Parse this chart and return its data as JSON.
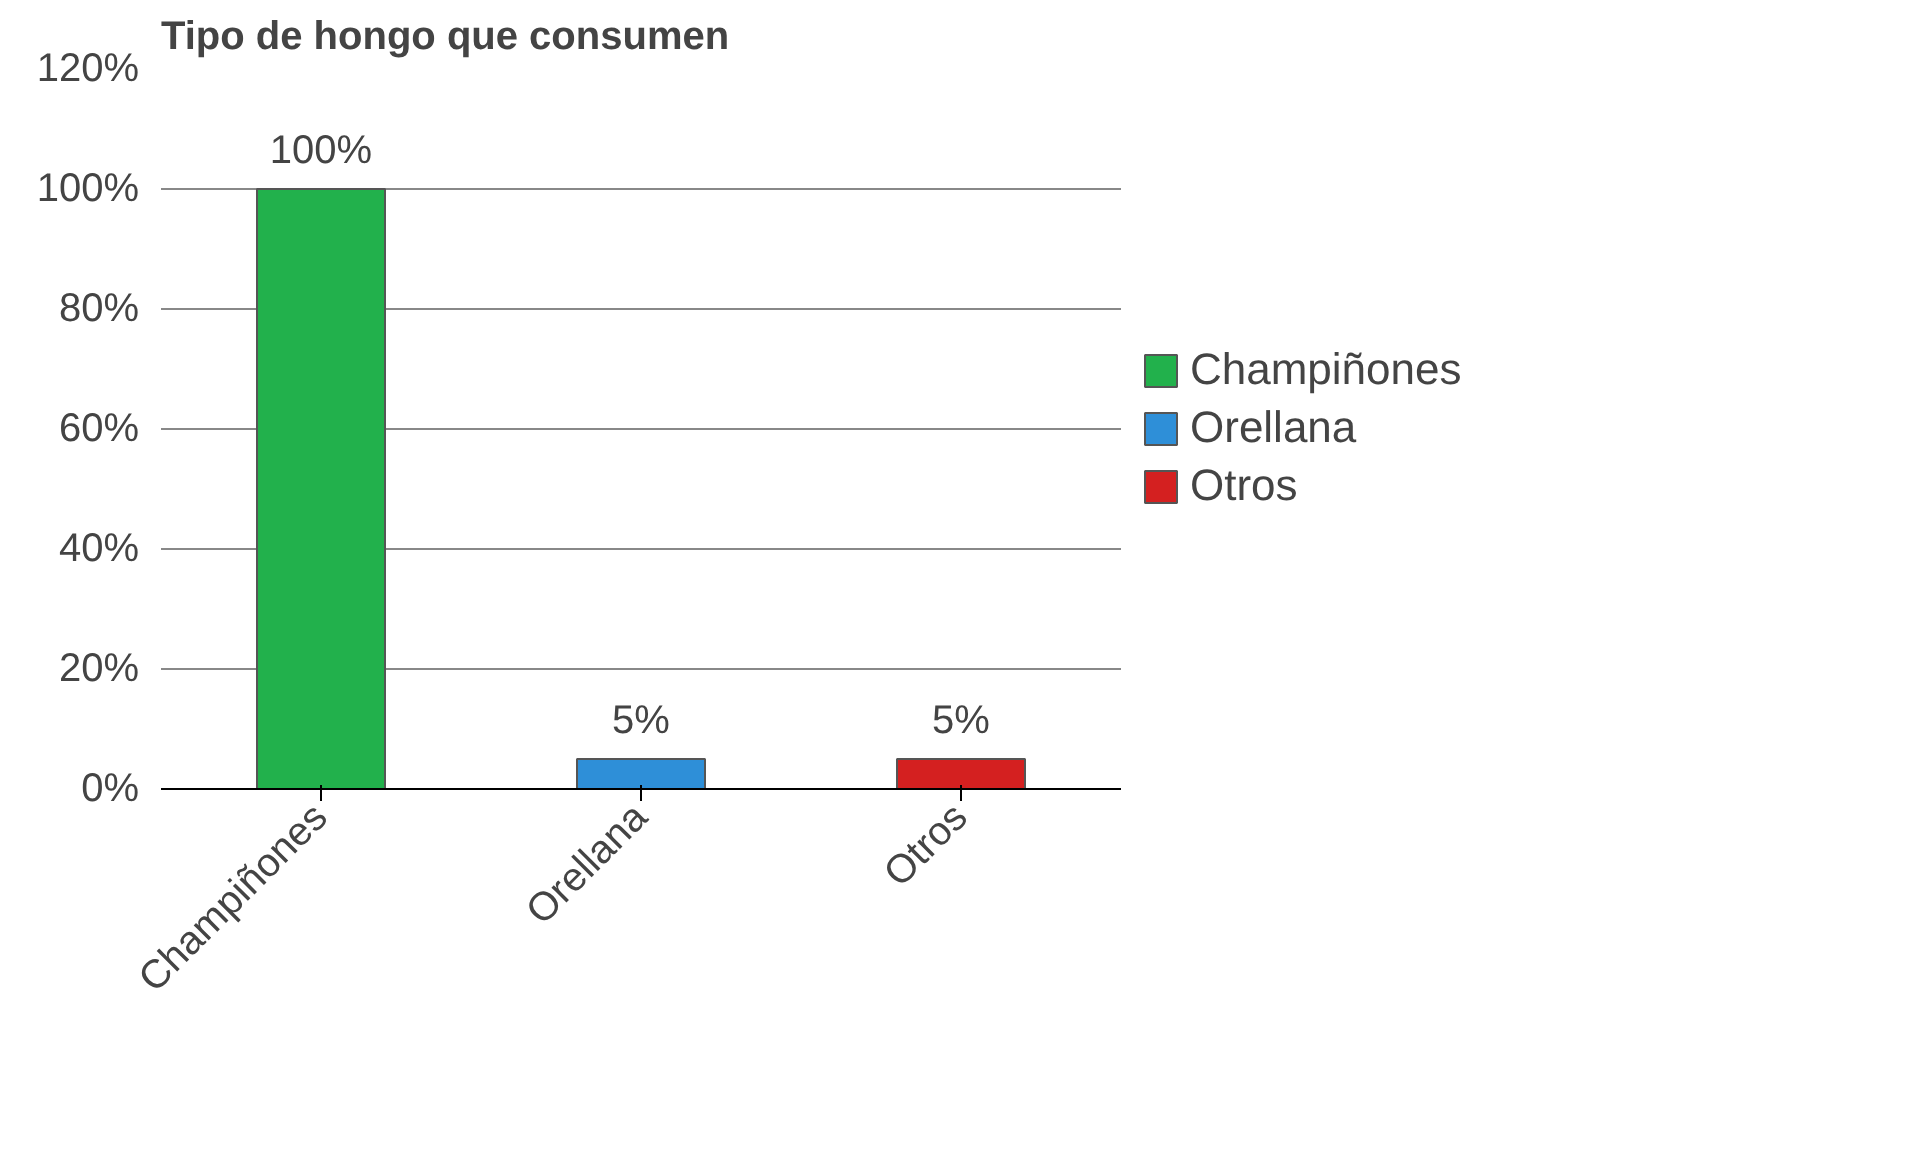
{
  "chart_data": {
    "type": "bar",
    "title": "Tipo de hongo que consumen",
    "categories": [
      "Champiñones",
      "Orellana",
      "Otros"
    ],
    "series": [
      {
        "name": "Champiñones",
        "color": "#22b14c",
        "values": [
          100,
          null,
          null
        ],
        "value_labels": [
          "100%",
          null,
          null
        ]
      },
      {
        "name": "Orellana",
        "color": "#2e8fd8",
        "values": [
          null,
          5,
          null
        ],
        "value_labels": [
          null,
          "5%",
          null
        ]
      },
      {
        "name": "Otros",
        "color": "#d42020",
        "values": [
          null,
          null,
          5
        ],
        "value_labels": [
          null,
          null,
          "5%"
        ]
      }
    ],
    "ylim": [
      0,
      120
    ],
    "yticks": [
      {
        "value": 0,
        "label": "0%"
      },
      {
        "value": 20,
        "label": "20%"
      },
      {
        "value": 40,
        "label": "40%"
      },
      {
        "value": 60,
        "label": "60%"
      },
      {
        "value": 80,
        "label": "80%"
      },
      {
        "value": 100,
        "label": "100%"
      },
      {
        "value": 120,
        "label": "120%"
      }
    ],
    "grid": "y",
    "legend": "right"
  }
}
